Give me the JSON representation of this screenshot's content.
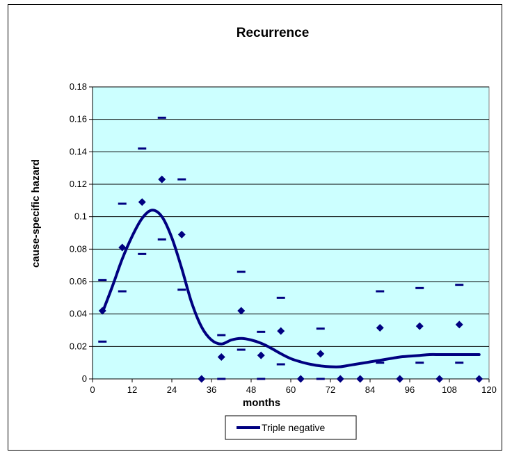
{
  "chart_data": {
    "type": "line",
    "title": "Recurrence",
    "xlabel": "months",
    "ylabel": "cause-specific hazard",
    "xlim": [
      0,
      120
    ],
    "ylim": [
      0,
      0.18
    ],
    "x_ticks": [
      "0",
      "12",
      "24",
      "36",
      "48",
      "60",
      "72",
      "84",
      "96",
      "108",
      "120"
    ],
    "y_ticks": [
      "0",
      "0.02",
      "0.04",
      "0.06",
      "0.08",
      "0.1",
      "0.12",
      "0.14",
      "0.16",
      "0.18"
    ],
    "grid": "horizontal",
    "plot_background": "#ccffff",
    "legend_position": "bottom-center",
    "series": [
      {
        "name": "Triple negative",
        "kind": "smoothed-line",
        "color": "#000080",
        "x": [
          3,
          6,
          9,
          12,
          15,
          18,
          21,
          24,
          27,
          30,
          33,
          36,
          39,
          42,
          45,
          48,
          51,
          54,
          57,
          60,
          63,
          66,
          69,
          72,
          75,
          78,
          81,
          84,
          87,
          90,
          93,
          96,
          99,
          102,
          105,
          108,
          111,
          114,
          117
        ],
        "y": [
          0.041,
          0.057,
          0.074,
          0.088,
          0.099,
          0.104,
          0.1,
          0.087,
          0.068,
          0.047,
          0.032,
          0.024,
          0.0215,
          0.024,
          0.025,
          0.024,
          0.022,
          0.019,
          0.0155,
          0.0125,
          0.0105,
          0.009,
          0.008,
          0.0075,
          0.0075,
          0.0085,
          0.0095,
          0.0105,
          0.0115,
          0.0125,
          0.0135,
          0.014,
          0.0145,
          0.015,
          0.015,
          0.015,
          0.015,
          0.015,
          0.015
        ]
      },
      {
        "name": "",
        "kind": "points",
        "color": "#000080",
        "x": [
          3,
          9,
          15,
          21,
          27,
          33,
          39,
          45,
          51,
          57,
          63,
          69,
          75,
          81,
          87,
          93,
          99,
          105,
          111,
          117
        ],
        "y": [
          0.042,
          0.081,
          0.109,
          0.123,
          0.089,
          0,
          0.0135,
          0.042,
          0.0145,
          0.0295,
          0,
          0.0155,
          0,
          0,
          0.0315,
          0,
          0.0325,
          0,
          0.0335,
          0
        ]
      },
      {
        "name": "",
        "kind": "dash-upper",
        "color": "#000080",
        "x": [
          3,
          9,
          15,
          21,
          27,
          39,
          45,
          51,
          57,
          69,
          87,
          99,
          111
        ],
        "y": [
          0.061,
          0.108,
          0.142,
          0.161,
          0.123,
          0.027,
          0.066,
          0.029,
          0.05,
          0.031,
          0.054,
          0.056,
          0.058
        ]
      },
      {
        "name": "",
        "kind": "dash-lower",
        "color": "#000080",
        "x": [
          3,
          9,
          15,
          21,
          27,
          39,
          45,
          51,
          57,
          69,
          87,
          99,
          111
        ],
        "y": [
          0.023,
          0.054,
          0.077,
          0.086,
          0.055,
          0,
          0.018,
          0,
          0.009,
          0,
          0.01,
          0.01,
          0.01
        ]
      }
    ]
  }
}
